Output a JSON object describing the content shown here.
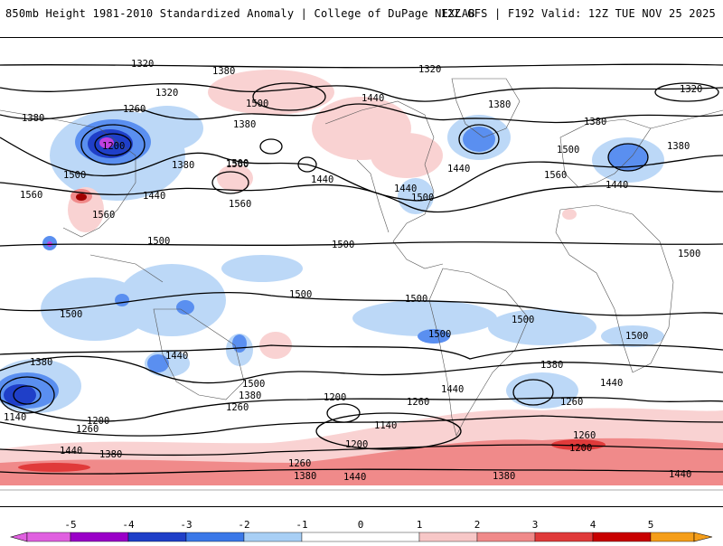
{
  "header": {
    "title": "850mb Height 1981-2010 Standardized Anomaly | College of DuPage NEXLAB",
    "run_info": "12Z GFS | F192 Valid: 12Z TUE NOV 25 2025"
  },
  "contour_labels": [
    "1320",
    "1380",
    "1440",
    "1500",
    "1560",
    "1260",
    "1200",
    "1140"
  ],
  "legend": {
    "ticks": [
      "-5",
      "-4",
      "-3",
      "-2",
      "-1",
      "0",
      "1",
      "2",
      "3",
      "4",
      "5"
    ],
    "colors": [
      "#e060e0",
      "#9a00c8",
      "#1f3fc8",
      "#3a78e8",
      "#a8cff5",
      "#ffffff",
      "#f7c7c7",
      "#f08a8a",
      "#e03a3a",
      "#c80000",
      "#f59e1a"
    ]
  },
  "colors": {
    "strong_neg": "#1f3fc8",
    "neg": "#3a78e8",
    "weak_neg": "#bcd8f7",
    "weak_pos": "#f9d2d2",
    "pos": "#f08a8a",
    "strong_pos": "#e03a3a",
    "extreme_neg": "#c040e0"
  }
}
